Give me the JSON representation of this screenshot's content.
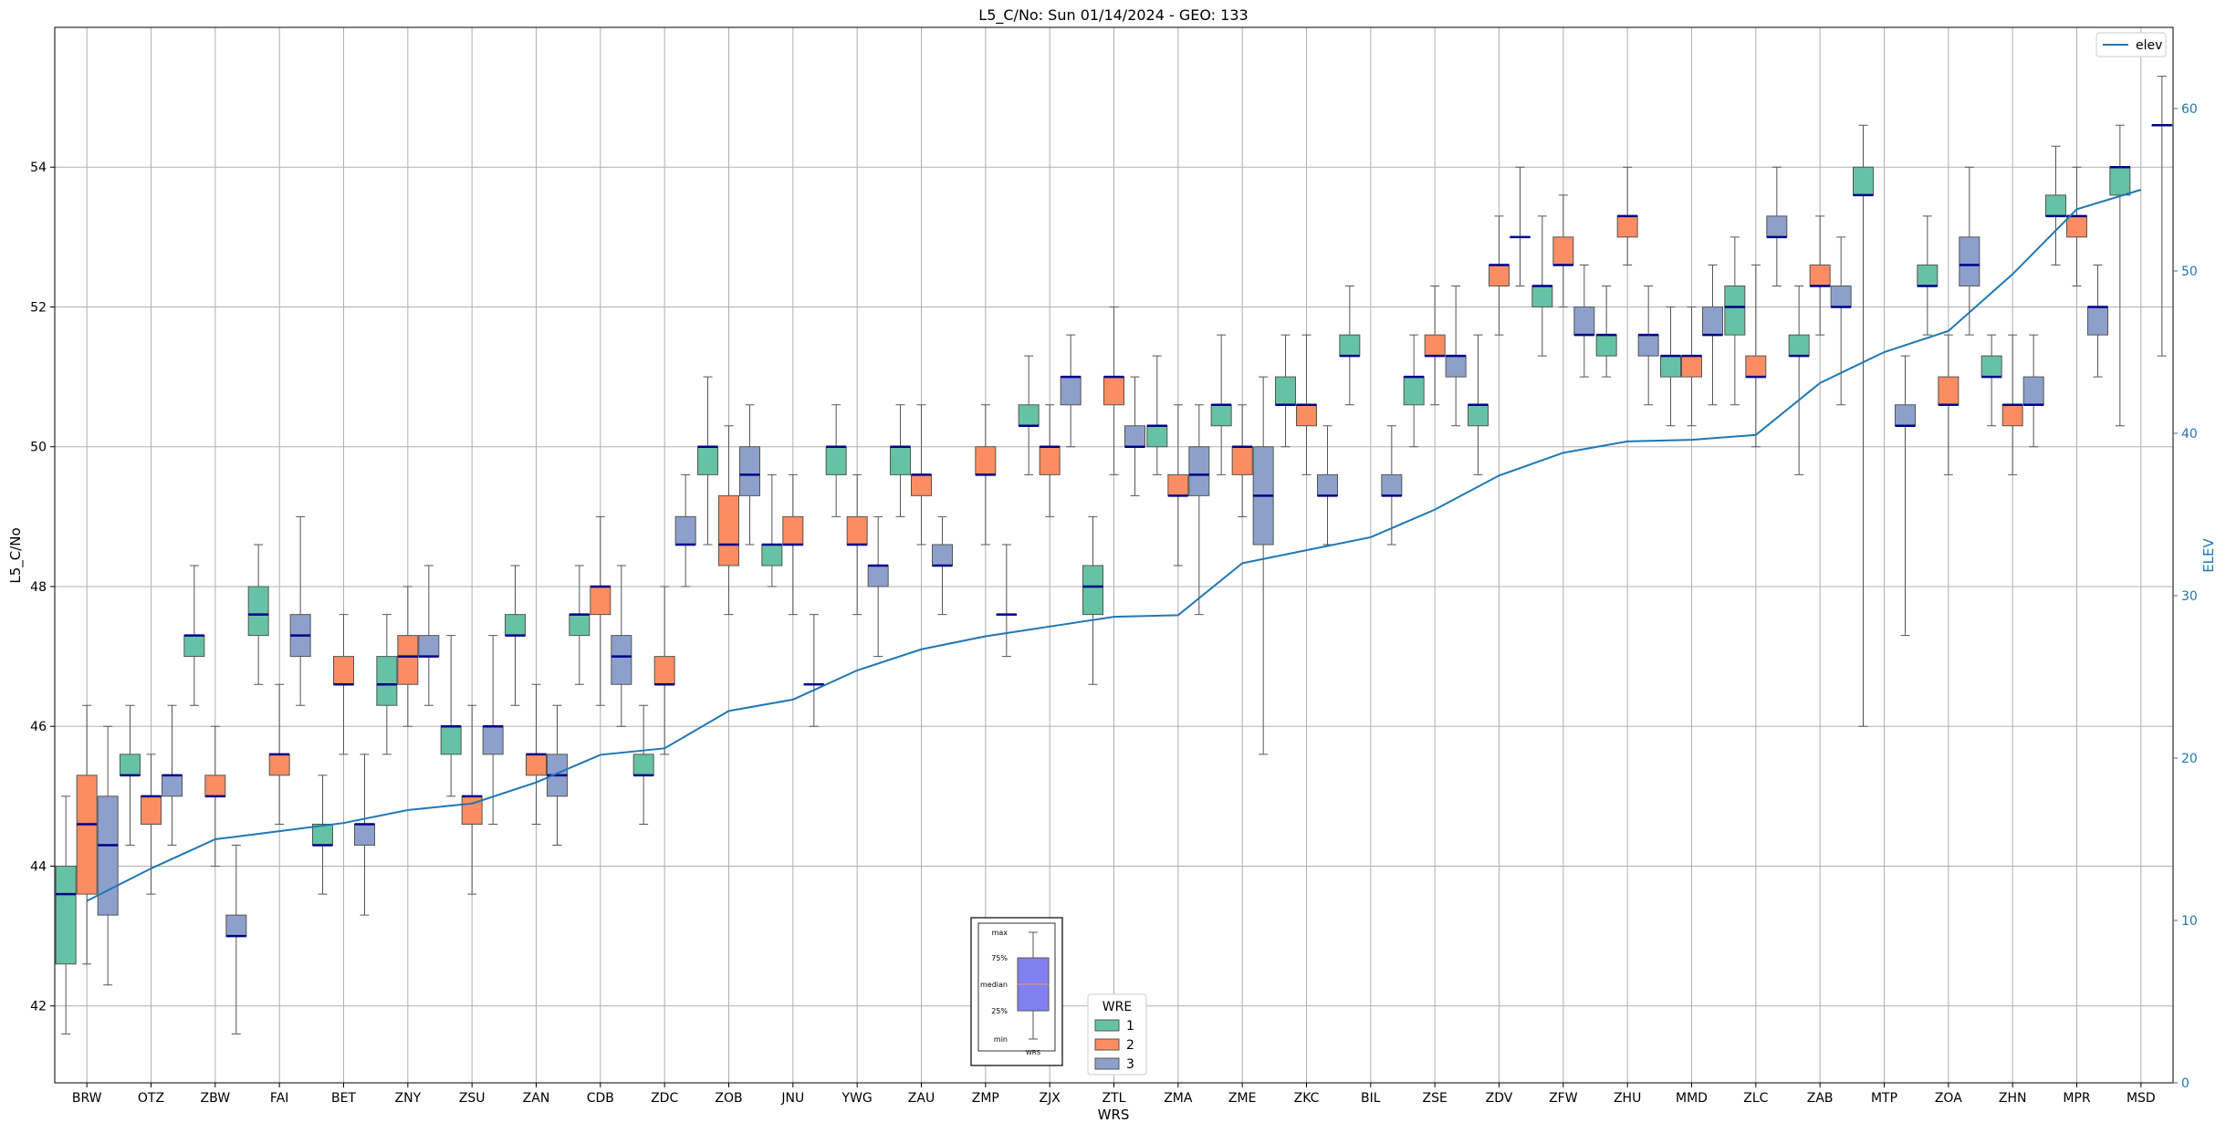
{
  "chart_data": {
    "type": "box",
    "title": "L5_C/No: Sun 01/14/2024 - GEO: 133",
    "xlabel": "WRS",
    "ylabel": "L5_C/No",
    "y2label": "ELEV",
    "ylim": [
      40.9,
      56.0
    ],
    "y2lim": [
      0,
      65
    ],
    "yticks": [
      42,
      44,
      46,
      48,
      50,
      52,
      54
    ],
    "y2ticks": [
      0,
      10,
      20,
      30,
      40,
      50,
      60
    ],
    "grid": true,
    "categories": [
      "BRW",
      "OTZ",
      "ZBW",
      "FAI",
      "BET",
      "ZNY",
      "ZSU",
      "ZAN",
      "CDB",
      "ZDC",
      "ZOB",
      "JNU",
      "YWG",
      "ZAU",
      "ZMP",
      "ZJX",
      "ZTL",
      "ZMA",
      "ZME",
      "ZKC",
      "BIL",
      "ZSE",
      "ZDV",
      "ZFW",
      "ZHU",
      "MMD",
      "ZLC",
      "ZAB",
      "MTP",
      "ZOA",
      "ZHN",
      "MPR",
      "MSD"
    ],
    "legend": {
      "title": "WRE",
      "placement": "lower-center",
      "entries": [
        {
          "label": "1",
          "color": "#66c2a5"
        },
        {
          "label": "2",
          "color": "#fc8d62"
        },
        {
          "label": "3",
          "color": "#8da0cb"
        }
      ]
    },
    "line_legend": {
      "label": "elev",
      "placement": "top-right",
      "color": "#1f77b4"
    },
    "key_box": {
      "labels": [
        "max",
        "75%",
        "median",
        "25%",
        "min"
      ],
      "xlabel": "WRS",
      "color": "#8080f0"
    },
    "elev": [
      11.2,
      13.2,
      15.0,
      15.5,
      16.0,
      16.8,
      17.2,
      18.5,
      20.2,
      20.6,
      22.9,
      23.6,
      25.4,
      26.7,
      27.5,
      28.1,
      28.7,
      28.8,
      32.0,
      32.8,
      33.6,
      35.3,
      37.4,
      38.8,
      39.5,
      39.6,
      39.9,
      43.1,
      45.0,
      46.3,
      49.8,
      53.8,
      55.0
    ],
    "series": [
      {
        "name": "1",
        "color": "#66c2a5",
        "boxes": [
          [
            41.6,
            42.6,
            43.6,
            44.0,
            45.0
          ],
          [
            44.3,
            45.3,
            45.3,
            45.6,
            46.3
          ],
          [
            46.3,
            47.0,
            47.3,
            47.3,
            48.3
          ],
          [
            46.6,
            47.3,
            47.6,
            48.0,
            48.6
          ],
          [
            43.6,
            44.3,
            44.3,
            44.6,
            45.3
          ],
          [
            45.6,
            46.3,
            46.6,
            47.0,
            47.6
          ],
          [
            45.0,
            45.6,
            46.0,
            46.0,
            47.3
          ],
          [
            46.3,
            47.3,
            47.3,
            47.6,
            48.3
          ],
          [
            46.6,
            47.3,
            47.6,
            47.6,
            48.3
          ],
          [
            44.6,
            45.3,
            45.3,
            45.6,
            46.3
          ],
          [
            48.6,
            49.6,
            50.0,
            50.0,
            51.0
          ],
          [
            48.0,
            48.3,
            48.6,
            48.6,
            49.6
          ],
          [
            49.0,
            49.6,
            50.0,
            50.0,
            50.6
          ],
          [
            49.0,
            49.6,
            50.0,
            50.0,
            50.6
          ],
          null,
          [
            49.6,
            50.3,
            50.3,
            50.6,
            51.3
          ],
          [
            46.6,
            47.6,
            48.0,
            48.3,
            49.0
          ],
          [
            49.6,
            50.0,
            50.3,
            50.3,
            51.3
          ],
          [
            49.6,
            50.3,
            50.6,
            50.6,
            51.6
          ],
          [
            50.0,
            50.6,
            50.6,
            51.0,
            51.6
          ],
          [
            50.6,
            51.3,
            51.3,
            51.6,
            52.3
          ],
          [
            50.0,
            50.6,
            51.0,
            51.0,
            51.6
          ],
          [
            49.6,
            50.3,
            50.6,
            50.6,
            51.6
          ],
          [
            51.3,
            52.0,
            52.3,
            52.3,
            53.3
          ],
          [
            51.0,
            51.3,
            51.6,
            51.6,
            52.3
          ],
          [
            50.3,
            51.0,
            51.3,
            51.3,
            52.0
          ],
          [
            50.6,
            51.6,
            52.0,
            52.3,
            53.0
          ],
          [
            49.6,
            51.3,
            51.3,
            51.6,
            52.3
          ],
          [
            46.0,
            53.6,
            53.6,
            54.0,
            54.6
          ],
          [
            51.6,
            52.3,
            52.3,
            52.6,
            53.3
          ],
          [
            50.3,
            51.0,
            51.0,
            51.3,
            51.6
          ],
          [
            52.6,
            53.3,
            53.3,
            53.6,
            54.3
          ],
          [
            50.3,
            53.6,
            54.0,
            54.0,
            54.6
          ]
        ]
      },
      {
        "name": "2",
        "color": "#fc8d62",
        "boxes": [
          [
            42.6,
            43.6,
            44.6,
            45.3,
            46.3
          ],
          [
            43.6,
            44.6,
            45.0,
            45.0,
            45.6
          ],
          [
            44.0,
            45.0,
            45.0,
            45.3,
            46.0
          ],
          [
            44.6,
            45.3,
            45.6,
            45.6,
            46.6
          ],
          [
            45.6,
            46.6,
            46.6,
            47.0,
            47.6
          ],
          [
            46.0,
            46.6,
            47.0,
            47.3,
            48.0
          ],
          [
            43.6,
            44.6,
            45.0,
            45.0,
            46.3
          ],
          [
            44.6,
            45.3,
            45.6,
            45.6,
            46.6
          ],
          [
            46.3,
            47.6,
            48.0,
            48.0,
            49.0
          ],
          [
            45.6,
            46.6,
            46.6,
            47.0,
            48.0
          ],
          [
            47.6,
            48.3,
            48.6,
            49.3,
            50.3
          ],
          [
            47.6,
            48.6,
            48.6,
            49.0,
            49.6
          ],
          [
            47.6,
            48.6,
            48.6,
            49.0,
            49.6
          ],
          [
            48.6,
            49.3,
            49.6,
            49.6,
            50.6
          ],
          [
            48.6,
            49.6,
            49.6,
            50.0,
            50.6
          ],
          [
            49.0,
            49.6,
            50.0,
            50.0,
            50.6
          ],
          [
            49.6,
            50.6,
            51.0,
            51.0,
            52.0
          ],
          [
            48.3,
            49.3,
            49.3,
            49.6,
            50.6
          ],
          [
            49.0,
            49.6,
            50.0,
            50.0,
            50.6
          ],
          [
            49.6,
            50.3,
            50.6,
            50.6,
            51.6
          ],
          null,
          [
            50.6,
            51.3,
            51.3,
            51.6,
            52.3
          ],
          [
            51.6,
            52.3,
            52.6,
            52.6,
            53.3
          ],
          [
            52.0,
            52.6,
            52.6,
            53.0,
            53.6
          ],
          [
            52.6,
            53.0,
            53.3,
            53.3,
            54.0
          ],
          [
            50.3,
            51.0,
            51.3,
            51.3,
            52.0
          ],
          [
            50.0,
            51.0,
            51.0,
            51.3,
            52.6
          ],
          [
            51.6,
            52.3,
            52.3,
            52.6,
            53.3
          ],
          null,
          [
            49.6,
            50.6,
            50.6,
            51.0,
            51.6
          ],
          [
            49.6,
            50.3,
            50.6,
            50.6,
            51.6
          ],
          [
            52.3,
            53.0,
            53.3,
            53.3,
            54.0
          ],
          null
        ]
      },
      {
        "name": "3",
        "color": "#8da0cb",
        "boxes": [
          [
            42.3,
            43.3,
            44.3,
            45.0,
            46.0
          ],
          [
            44.3,
            45.0,
            45.3,
            45.3,
            46.3
          ],
          [
            41.6,
            43.0,
            43.0,
            43.3,
            44.3
          ],
          [
            46.3,
            47.0,
            47.3,
            47.6,
            49.0
          ],
          [
            43.3,
            44.3,
            44.6,
            44.6,
            45.6
          ],
          [
            46.3,
            47.0,
            47.0,
            47.3,
            48.3
          ],
          [
            44.6,
            45.6,
            46.0,
            46.0,
            47.3
          ],
          [
            44.3,
            45.0,
            45.3,
            45.6,
            46.3
          ],
          [
            46.0,
            46.6,
            47.0,
            47.3,
            48.3
          ],
          [
            48.0,
            48.6,
            48.6,
            49.0,
            49.6
          ],
          [
            48.6,
            49.3,
            49.6,
            50.0,
            50.6
          ],
          [
            46.0,
            46.6,
            46.6,
            46.6,
            47.6
          ],
          [
            47.0,
            48.0,
            48.3,
            48.3,
            49.0
          ],
          [
            47.6,
            48.3,
            48.3,
            48.6,
            49.0
          ],
          [
            47.0,
            47.6,
            47.6,
            47.6,
            48.6
          ],
          [
            50.0,
            50.6,
            51.0,
            51.0,
            51.6
          ],
          [
            49.3,
            50.0,
            50.0,
            50.3,
            51.0
          ],
          [
            47.6,
            49.3,
            49.6,
            50.0,
            50.6
          ],
          [
            45.6,
            48.6,
            49.3,
            50.0,
            51.0
          ],
          [
            48.6,
            49.3,
            49.3,
            49.6,
            50.3
          ],
          [
            48.6,
            49.3,
            49.3,
            49.6,
            50.3
          ],
          [
            50.3,
            51.0,
            51.3,
            51.3,
            52.3
          ],
          [
            52.3,
            53.0,
            53.0,
            53.0,
            54.0
          ],
          [
            51.0,
            51.6,
            51.6,
            52.0,
            52.6
          ],
          [
            50.6,
            51.3,
            51.6,
            51.6,
            52.3
          ],
          [
            50.6,
            51.6,
            51.6,
            52.0,
            52.6
          ],
          [
            52.3,
            53.0,
            53.0,
            53.3,
            54.0
          ],
          [
            50.6,
            52.0,
            52.0,
            52.3,
            53.0
          ],
          [
            47.3,
            50.3,
            50.3,
            50.6,
            51.3
          ],
          [
            51.6,
            52.3,
            52.6,
            53.0,
            54.0
          ],
          [
            50.0,
            50.6,
            50.6,
            51.0,
            51.6
          ],
          [
            51.0,
            51.6,
            52.0,
            52.0,
            52.6
          ],
          [
            51.3,
            54.6,
            54.6,
            54.6,
            55.3
          ]
        ]
      }
    ]
  }
}
